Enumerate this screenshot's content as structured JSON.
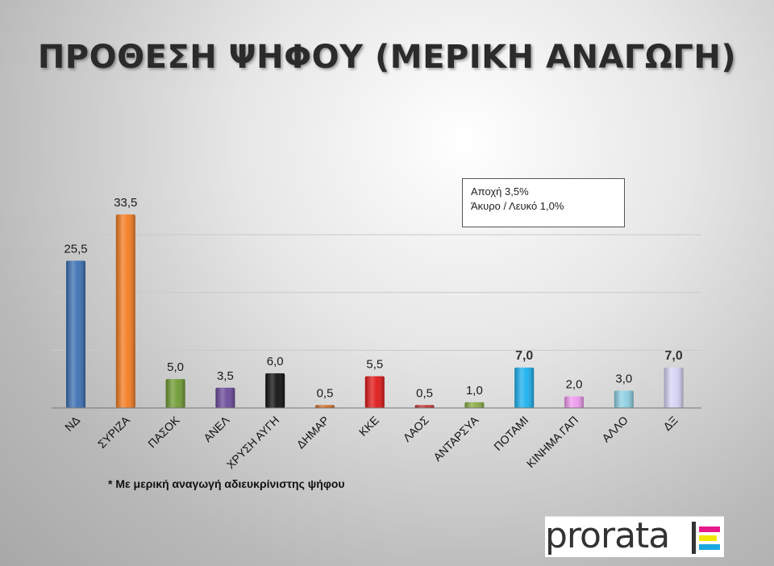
{
  "title": "ΠΡΟΘΕΣΗ ΨΗΦΟΥ (ΜΕΡΙΚΗ ΑΝΑΓΩΓΗ)",
  "note": {
    "line1": "Αποχή 3,5%",
    "line2": "Άκυρο / Λευκό 1,0%"
  },
  "footnote": "* Με μερική αναγωγή αδιευκρίνιστης ψήφου",
  "logo": {
    "text": "prorata",
    "mark_colors": [
      "#e6198a",
      "#f2e600",
      "#1aa8e0"
    ]
  },
  "chart_data": {
    "type": "bar",
    "ylim": [
      0,
      35
    ],
    "grid": true,
    "categories": [
      "ΝΔ",
      "ΣΥΡΙΖΑ",
      "ΠΑΣΟΚ",
      "ΑΝΕΛ",
      "ΧΡΥΣΗ ΑΥΓΗ",
      "ΔΗΜΑΡ",
      "ΚΚΕ",
      "ΛΑΟΣ",
      "ΑΝΤΑΡΣΥΑ",
      "ΠΟΤΑΜΙ",
      "ΚΙΝΗΜΑ ΓΑΠ",
      "ΑΛΛΟ",
      "ΔΞ"
    ],
    "values": [
      25.5,
      33.5,
      5.0,
      3.5,
      6.0,
      0.5,
      5.5,
      0.5,
      1.0,
      7.0,
      2.0,
      3.0,
      7.0
    ],
    "labels": [
      "25,5",
      "33,5",
      "5,0",
      "3,5",
      "6,0",
      "0,5",
      "5,5",
      "0,5",
      "1,0",
      "7,0",
      "2,0",
      "3,0",
      "7,0"
    ],
    "colors": [
      "#3a6fb3",
      "#f47b20",
      "#6f9a33",
      "#6a4a9a",
      "#101010",
      "#d06a20",
      "#e01818",
      "#c03030",
      "#88aa44",
      "#1ab0ee",
      "#ee99ee",
      "#8ccfe2",
      "#d6d3f5"
    ]
  }
}
